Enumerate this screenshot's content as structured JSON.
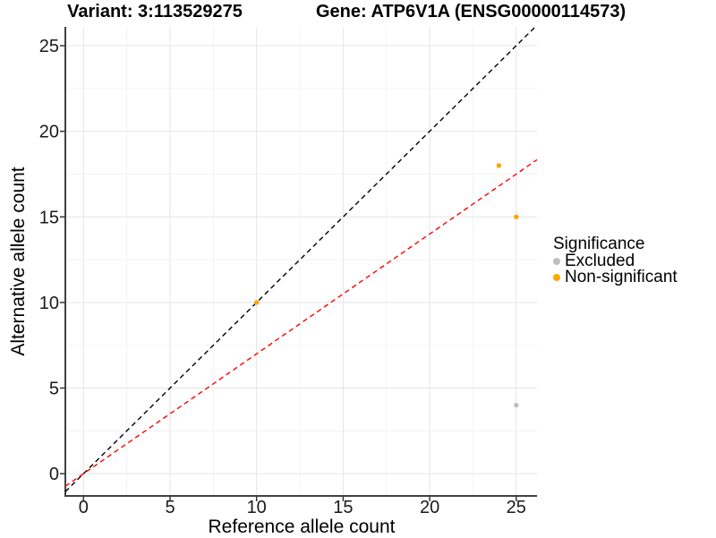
{
  "titles": {
    "variant": "Variant: 3:113529275",
    "gene": "Gene: ATP6V1A (ENSG00000114573)"
  },
  "chart_data": {
    "type": "scatter",
    "xlabel": "Reference allele count",
    "ylabel": "Alternative allele count",
    "xlim": [
      -1.05,
      26.2
    ],
    "ylim": [
      -1.3,
      26.1
    ],
    "x_ticks": [
      0,
      5,
      10,
      15,
      20,
      25
    ],
    "y_ticks": [
      0,
      5,
      10,
      15,
      20,
      25
    ],
    "x_minor_ticks": [
      2.5,
      7.5,
      12.5,
      17.5,
      22.5
    ],
    "y_minor_ticks": [
      2.5,
      7.5,
      12.5,
      17.5,
      22.5
    ],
    "grid": true,
    "series": [
      {
        "name": "Excluded",
        "color": "#BEBEBE",
        "points": [
          [
            25,
            4
          ]
        ]
      },
      {
        "name": "Non-significant",
        "color": "#FFA500",
        "points": [
          [
            10,
            10
          ],
          [
            24,
            18
          ],
          [
            25,
            15
          ]
        ]
      }
    ],
    "lines": [
      {
        "name": "identity-line",
        "color": "#000000",
        "style": "dashed",
        "slope": 1.0,
        "intercept": 0
      },
      {
        "name": "expected-ratio-line",
        "color": "#FF0000",
        "style": "dashed",
        "slope": 0.7,
        "intercept": 0
      }
    ],
    "legend": {
      "title": "Significance",
      "position": "right",
      "entries": [
        {
          "label": "Excluded",
          "color": "#BEBEBE"
        },
        {
          "label": "Non-significant",
          "color": "#FFA500"
        }
      ]
    },
    "style": {
      "grid_major_color": "#e5e5e5",
      "grid_minor_color": "#f3f3f3",
      "axis_line_color": "#404040",
      "tick_color": "#333333",
      "tick_label_color": "#1a1a1a"
    }
  }
}
